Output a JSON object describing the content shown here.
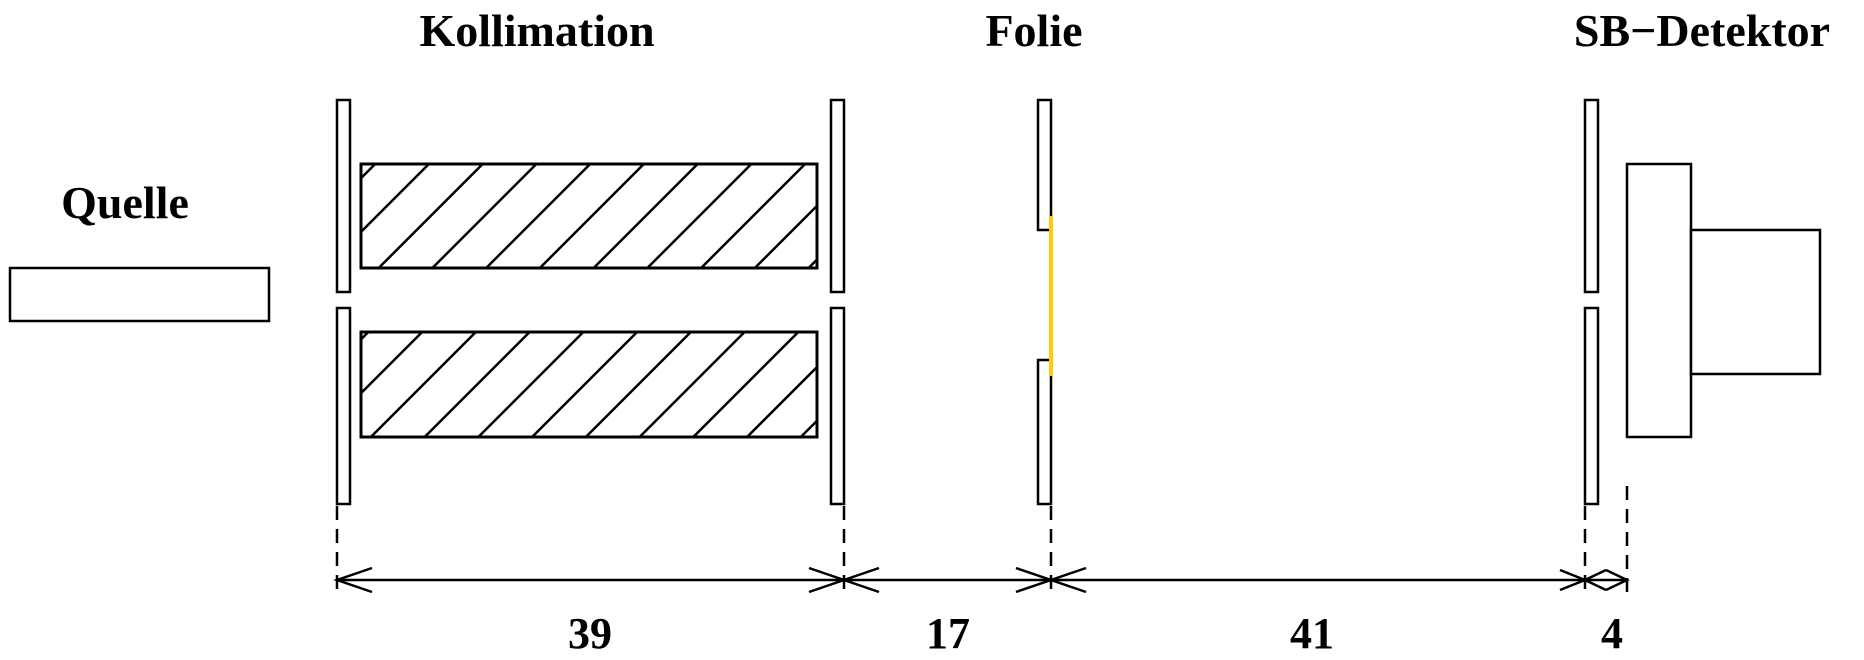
{
  "labels": {
    "source": "Quelle",
    "collimation": "Kollimation",
    "foil": "Folie",
    "detector": "SB−Detektor"
  },
  "dimensions": {
    "d1": "39",
    "d2": "17",
    "d3": "41",
    "d4": "4"
  },
  "colors": {
    "foil_window": "#ffcc00",
    "lines": "#000000"
  }
}
